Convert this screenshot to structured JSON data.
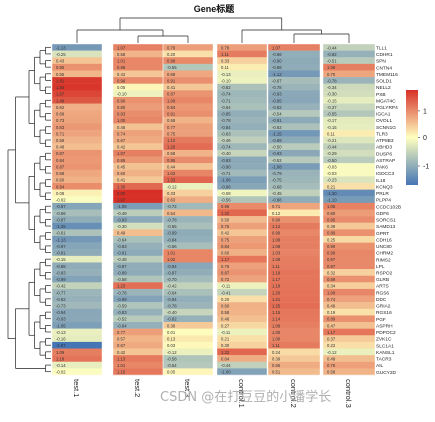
{
  "watermark": "CSDN @在打豆豆的小潘学长",
  "chart_data": {
    "type": "heatmap",
    "title": "Gene标题",
    "columns": [
      "test.1",
      "test.2",
      "test.3",
      "control.1",
      "control.2",
      "control.3"
    ],
    "rows": [
      "TLL1",
      "CDHR1",
      "SPN",
      "CNTN4",
      "TMEM116",
      "SOLD1",
      "NELL2",
      "PXB",
      "MGAT4C",
      "PGLYRP4",
      "IGCA1",
      "OVOL1",
      "SCNN1G",
      "TLR3",
      "ATP8B3",
      "ABHD3",
      "DUSP6",
      "ASTRAP",
      "PAK6",
      "IGDCC3",
      "IL18",
      "KCNQ3",
      "PRLR",
      "PLPP4",
      "CCDC102B",
      "GDF6",
      "SORCS1",
      "SAMD13",
      "GPRT",
      "CDH16",
      "UNC80",
      "CHRM2",
      "RIMS2",
      "LPL",
      "RSPO2",
      "GLRB",
      "ARTS",
      "RGS6",
      "DDC",
      "GRIA2",
      "RGS16",
      "PGF",
      "ASPRH",
      "PDPOC2",
      "ZVK1C",
      "SLC1A1",
      "KANSL1",
      "TACR3",
      "AIL",
      "GUCY2D"
    ],
    "values": [
      [
        -1.13,
        1.07,
        0.78,
        0.78,
        1.07,
        -0.44
      ],
      [
        -0.25,
        0.58,
        0.2,
        1.11,
        -0.86,
        -0.82
      ],
      [
        0.43,
        1.01,
        0.98,
        0.33,
        -0.9,
        -0.51
      ],
      [
        0.9,
        0.99,
        -0.55,
        0.11,
        -0.88,
        1.08
      ],
      [
        0.55,
        0.42,
        0.69,
        -0.13,
        -1.12,
        0.7
      ],
      [
        1.81,
        0.96,
        0.91,
        -0.1,
        -0.67,
        -0.78
      ],
      [
        1.84,
        0.05,
        0.41,
        -0.62,
        -0.78,
        -0.34
      ],
      [
        1.67,
        -0.1,
        0.87,
        -0.74,
        -0.93,
        -0.3
      ],
      [
        1.49,
        0.9,
        1.0,
        -0.71,
        -0.95,
        -0.15
      ],
      [
        0.62,
        0.8,
        0.84,
        -0.64,
        -0.82,
        -0.37
      ],
      [
        0.69,
        0.93,
        0.91,
        -0.85,
        -0.54,
        -0.55
      ],
      [
        0.73,
        1.0,
        0.58,
        -0.78,
        -0.91,
        -0.17
      ],
      [
        0.83,
        0.45,
        0.77,
        -0.84,
        -0.62,
        -0.15
      ],
      [
        0.71,
        0.74,
        0.75,
        -0.63,
        -1.15,
        0.11
      ],
      [
        0.59,
        0.67,
        1.12,
        -0.46,
        -0.89,
        -0.21
      ],
      [
        0.48,
        0.42,
        1.26,
        -0.74,
        -0.5,
        -0.44
      ],
      [
        0.87,
        1.07,
        0.58,
        -0.4,
        -0.93,
        -0.29
      ],
      [
        0.84,
        0.85,
        0.95,
        -0.93,
        -0.52,
        -0.5
      ],
      [
        0.87,
        0.45,
        0.44,
        -0.9,
        -1.08,
        -0.03
      ],
      [
        0.69,
        0.6,
        1.02,
        -0.71,
        -0.79,
        -0.03
      ],
      [
        0.6,
        0.41,
        1.33,
        -1.06,
        -0.75,
        -0.23
      ],
      [
        0.94,
        1.3,
        -0.12,
        -0.96,
        -0.68,
        0.21
      ],
      [
        0.08,
        2.0,
        0.33,
        -0.08,
        -0.45,
        -1.3
      ],
      [
        -0.02,
        1.97,
        0.63,
        -0.56,
        -0.88,
        -1.1
      ],
      [
        -0.97,
        -1.06,
        -0.72,
        0.96,
        0.71,
        1.05
      ],
      [
        -0.66,
        -0.49,
        0.54,
        1.32,
        0.12,
        0.8
      ],
      [
        -0.87,
        -0.93,
        -0.78,
        0.5,
        0.9,
        0.95
      ],
      [
        -1.25,
        -0.3,
        -0.65,
        0.75,
        1.12,
        0.39
      ],
      [
        -0.61,
        0.49,
        -0.89,
        0.42,
        0.99,
        0.89
      ],
      [
        -1.13,
        -0.64,
        -0.84,
        0.75,
        1.08,
        0.25
      ],
      [
        -0.97,
        -0.83,
        -0.66,
        0.84,
        1.08,
        0.9
      ],
      [
        -0.91,
        -0.91,
        1.01,
        0.6,
        1.03,
        0.99
      ],
      [
        -0.15,
        -0.48,
        1.02,
        1.17,
        1.08,
        0.97
      ],
      [
        -0.88,
        -0.87,
        -0.94,
        0.76,
        1.11,
        0.97
      ],
      [
        -0.83,
        -0.89,
        -0.87,
        0.87,
        1.18,
        0.32
      ],
      [
        -0.99,
        -0.58,
        -0.7,
        0.72,
        1.17,
        0.89
      ],
      [
        -0.42,
        1.23,
        -0.42,
        -0.11,
        1.18,
        0.34
      ],
      [
        -0.77,
        -0.78,
        -0.64,
        -0.41,
        1.2,
        1.0
      ],
      [
        -0.82,
        -0.99,
        -0.84,
        0.2,
        1.21,
        0.74
      ],
      [
        -0.73,
        -0.59,
        -0.78,
        0.6,
        1.25,
        0.49
      ],
      [
        -0.94,
        -0.83,
        -0.4,
        0.58,
        1.15,
        0.19
      ],
      [
        -0.93,
        -0.52,
        -0.82,
        0.46,
        1.14,
        0.89
      ],
      [
        -1.05,
        -0.84,
        0.38,
        0.27,
        1.08,
        0.47
      ],
      [
        -0.13,
        0.77,
        0.01,
        -0.11,
        1.0,
        1.17
      ],
      [
        -0.16,
        0.57,
        0.13,
        0.21,
        1.0,
        0.37
      ],
      [
        -1.67,
        0.67,
        0.03,
        0.3,
        1.11,
        0.22
      ],
      [
        1.09,
        0.42,
        -0.12,
        1.32,
        0.24,
        -0.12
      ],
      [
        1.18,
        1.13,
        -0.58,
        0.64,
        0.39,
        0.49
      ],
      [
        -0.14,
        1.01,
        -0.54,
        -0.44,
        0.65,
        0.76
      ],
      [
        -0.02,
        1.15,
        0.05,
        -1.0,
        0.51,
        0.58
      ]
    ],
    "legend": {
      "ticks": [
        1,
        0,
        -1
      ],
      "position": "right"
    },
    "colors": {
      "high": "#d73027",
      "mid": "#ffffbf",
      "low": "#4575b4",
      "gap": "#ffffff",
      "tree": "#222222"
    },
    "column_gap_after": "test.3"
  }
}
